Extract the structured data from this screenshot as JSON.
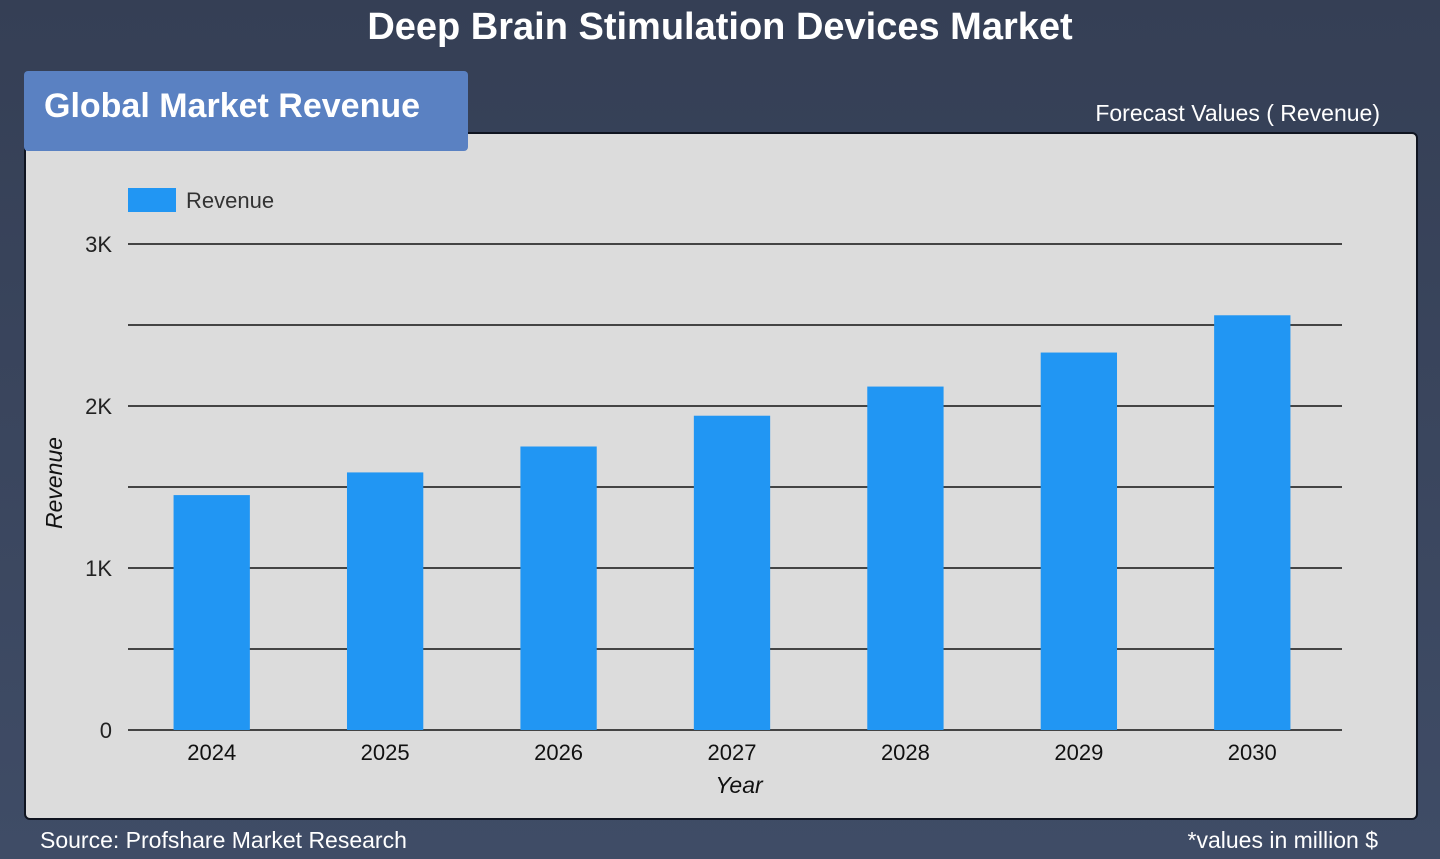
{
  "header": {
    "title": "Deep Brain Stimulation Devices Market",
    "section_tab": "Global Market Revenue",
    "forecast_label": "Forecast Values ( Revenue)"
  },
  "footer": {
    "source": "Source: Profshare Market Research",
    "note": "*values in million $"
  },
  "chart_data": {
    "type": "bar",
    "categories": [
      "2024",
      "2025",
      "2026",
      "2027",
      "2028",
      "2029",
      "2030"
    ],
    "series": [
      {
        "name": "Revenue",
        "values": [
          1450,
          1590,
          1750,
          1940,
          2120,
          2330,
          2560
        ],
        "color": "#2196f3"
      }
    ],
    "xlabel": "Year",
    "ylabel": "Revenue",
    "ylim": [
      0,
      3000
    ],
    "yticks": [
      0,
      1000,
      2000,
      3000
    ],
    "ytick_labels": [
      "0",
      "1K",
      "2K",
      "3K"
    ],
    "minor_gridlines": [
      500,
      1500,
      2500
    ],
    "grid": true,
    "legend_placement": "top-left"
  }
}
